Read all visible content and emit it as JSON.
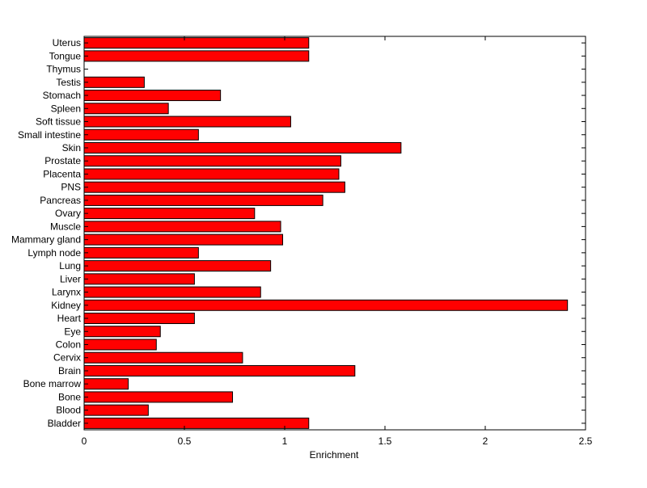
{
  "chart_data": {
    "type": "bar",
    "orientation": "horizontal",
    "title": "",
    "xlabel": "Enrichment",
    "ylabel": "",
    "xlim": [
      0,
      2.5
    ],
    "xticks": [
      "0",
      "0.5",
      "1",
      "1.5",
      "2",
      "2.5"
    ],
    "grid": false,
    "bar_color": "#ff0000",
    "categories": [
      "Bladder",
      "Blood",
      "Bone",
      "Bone marrow",
      "Brain",
      "Cervix",
      "Colon",
      "Eye",
      "Heart",
      "Kidney",
      "Larynx",
      "Liver",
      "Lung",
      "Lymph node",
      "Mammary gland",
      "Muscle",
      "Ovary",
      "Pancreas",
      "PNS",
      "Placenta",
      "Prostate",
      "Skin",
      "Small intestine",
      "Soft tissue",
      "Spleen",
      "Stomach",
      "Testis",
      "Thymus",
      "Tongue",
      "Uterus"
    ],
    "values": [
      1.12,
      0.32,
      0.74,
      0.22,
      1.35,
      0.79,
      0.36,
      0.38,
      0.55,
      2.41,
      0.88,
      0.55,
      0.93,
      0.57,
      0.99,
      0.98,
      0.85,
      1.19,
      1.3,
      1.27,
      1.28,
      1.58,
      0.57,
      1.03,
      0.42,
      0.68,
      0.3,
      0.0,
      1.12,
      1.12
    ]
  }
}
